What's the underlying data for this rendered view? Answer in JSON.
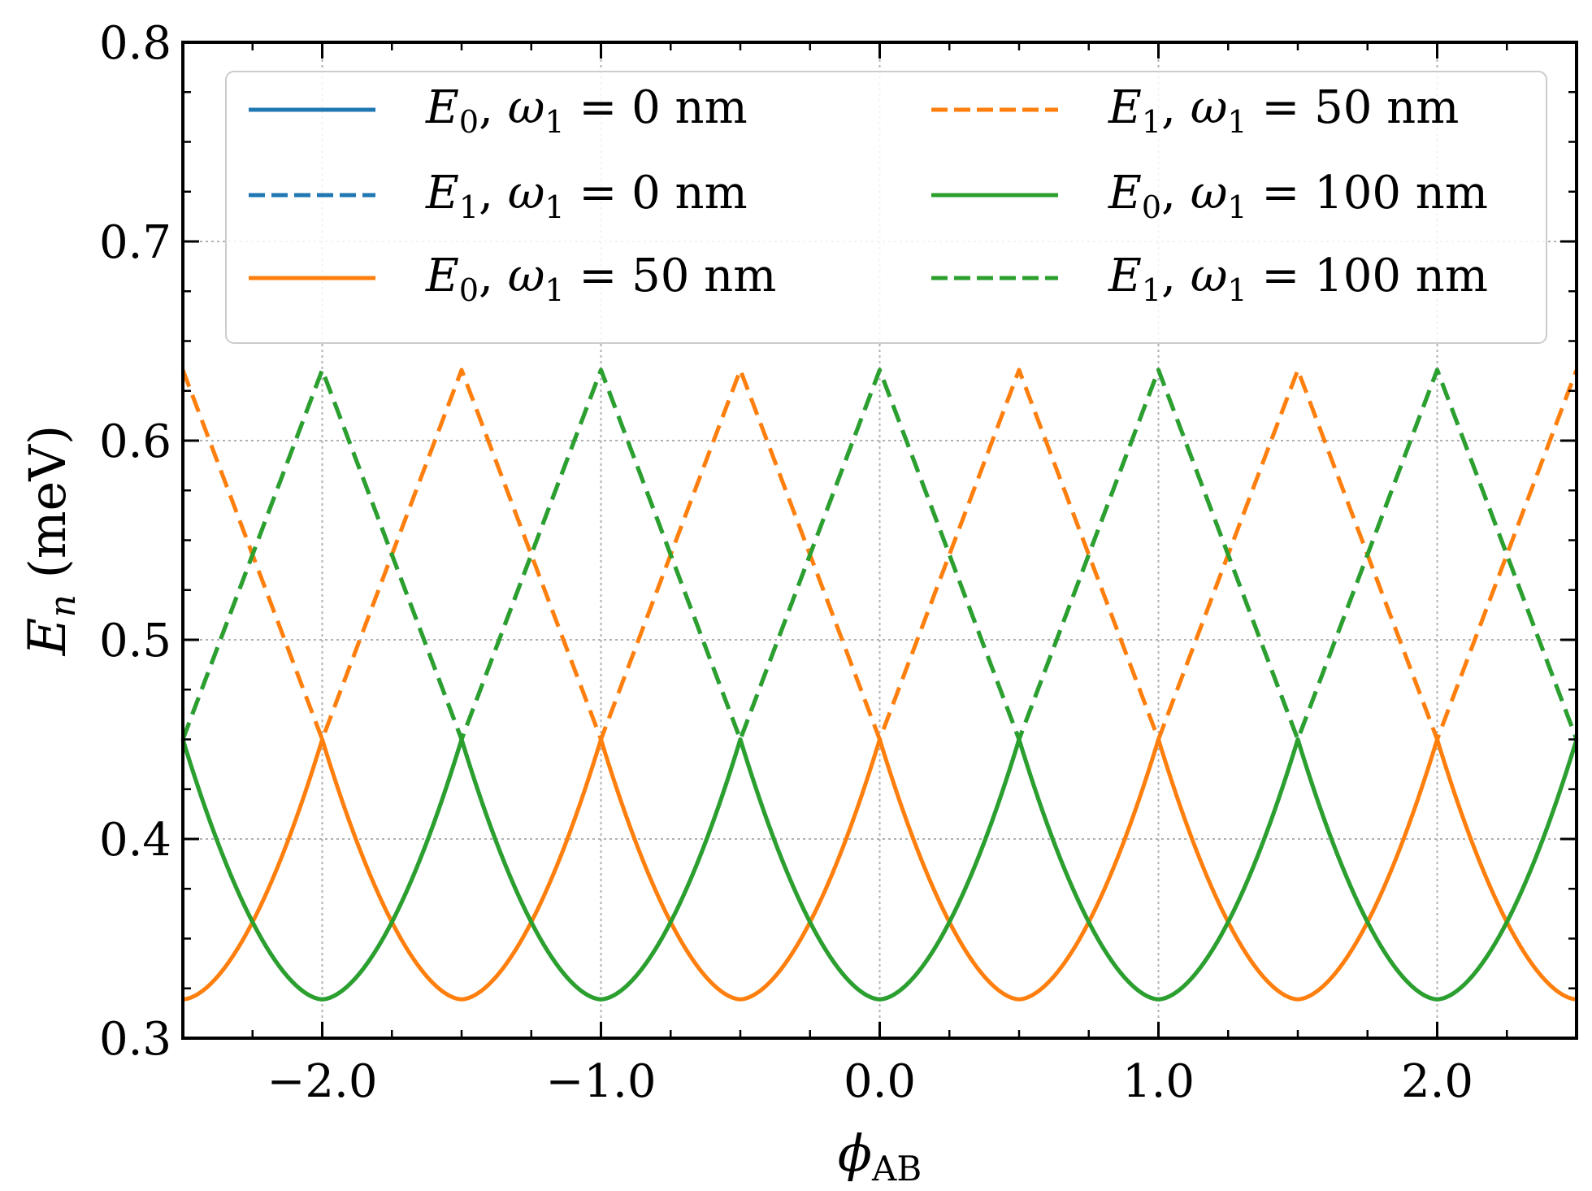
{
  "chart_data": {
    "type": "line",
    "xlabel": {
      "main": "ϕ",
      "sub": "AB"
    },
    "ylabel": {
      "main": "E",
      "sub": "n",
      "unit": " (meV)"
    },
    "xlim": [
      -2.5,
      2.5
    ],
    "ylim": [
      0.3,
      0.8
    ],
    "xticks": [
      -2.0,
      -1.0,
      0.0,
      1.0,
      2.0
    ],
    "xtick_labels": [
      "−2.0",
      "−1.0",
      "0.0",
      "1.0",
      "2.0"
    ],
    "yticks": [
      0.3,
      0.4,
      0.5,
      0.6,
      0.7,
      0.8
    ],
    "ytick_labels": [
      "0.3",
      "0.4",
      "0.5",
      "0.6",
      "0.7",
      "0.8"
    ],
    "grid": true,
    "legend_position": "top",
    "colors": {
      "blue": "#1f77b4",
      "orange": "#ff7f0e",
      "green": "#2ca02c"
    },
    "model": {
      "a": 0.3195,
      "b": 0.1305,
      "c": 0.6355,
      "d": 0.1855,
      "exponent": 1.75
    },
    "series": [
      {
        "name": {
          "E": "E",
          "sub": "0",
          "w": "ω",
          "wsub": "1",
          "eq": " = 0 nm"
        },
        "level": 0,
        "shift": 0.0,
        "color": "#1f77b4",
        "dash": "solid"
      },
      {
        "name": {
          "E": "E",
          "sub": "1",
          "w": "ω",
          "wsub": "1",
          "eq": " = 0 nm"
        },
        "level": 1,
        "shift": 0.0,
        "color": "#1f77b4",
        "dash": "dashed"
      },
      {
        "name": {
          "E": "E",
          "sub": "0",
          "w": "ω",
          "wsub": "1",
          "eq": " = 50 nm"
        },
        "level": 0,
        "shift": 0.5,
        "color": "#ff7f0e",
        "dash": "solid"
      },
      {
        "name": {
          "E": "E",
          "sub": "1",
          "w": "ω",
          "wsub": "1",
          "eq": " = 50 nm"
        },
        "level": 1,
        "shift": 0.5,
        "color": "#ff7f0e",
        "dash": "dashed"
      },
      {
        "name": {
          "E": "E",
          "sub": "0",
          "w": "ω",
          "wsub": "1",
          "eq": " = 100 nm"
        },
        "level": 0,
        "shift": 0.0,
        "color": "#2ca02c",
        "dash": "solid"
      },
      {
        "name": {
          "E": "E",
          "sub": "1",
          "w": "ω",
          "wsub": "1",
          "eq": " = 100 nm"
        },
        "level": 1,
        "shift": 0.0,
        "color": "#2ca02c",
        "dash": "dashed"
      }
    ]
  }
}
